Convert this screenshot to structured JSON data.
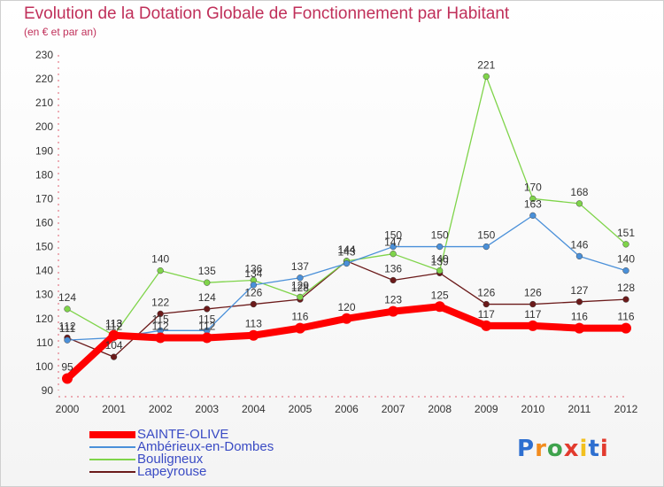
{
  "title": "Evolution de la Dotation Globale de Fonctionnement par Habitant",
  "subtitle": "(en € et par an)",
  "logo": {
    "letters": [
      "P",
      "r",
      "o",
      "x",
      "i",
      "t",
      "i"
    ],
    "colors": [
      "#2e6fd0",
      "#f28c1e",
      "#3fa34d",
      "#e23b2e",
      "#f2c01e",
      "#2e6fd0",
      "#e23b2e"
    ]
  },
  "chart_data": {
    "type": "line",
    "title": "Evolution de la Dotation Globale de Fonctionnement par Habitant",
    "ylabel": "",
    "x": [
      "2000",
      "2001",
      "2002",
      "2003",
      "2004",
      "2005",
      "2006",
      "2007",
      "2008",
      "2009",
      "2010",
      "2011",
      "2012"
    ],
    "ylim": [
      90,
      230
    ],
    "yticks": [
      "90",
      "100",
      "110",
      "120",
      "130",
      "140",
      "150",
      "160",
      "170",
      "180",
      "190",
      "200",
      "210",
      "220",
      "230"
    ],
    "grid": false,
    "legend_position": "bottom-left",
    "series": [
      {
        "name": "SAINTE-OLIVE",
        "color": "#ff0000",
        "values": [
          95,
          113,
          112,
          112,
          113,
          116,
          120,
          123,
          125,
          117,
          117,
          116,
          116
        ],
        "labels": [
          "95",
          "113",
          "112",
          "112",
          "113",
          "116",
          "120",
          "123",
          "125",
          "117",
          "117",
          "116",
          "116"
        ]
      },
      {
        "name": "Ambérieux-en-Dombes",
        "color": "#4a90d9",
        "values": [
          111,
          112,
          115,
          115,
          134,
          137,
          143,
          150,
          150,
          150,
          163,
          146,
          140
        ],
        "labels": [
          "111",
          "112",
          "115",
          "115",
          "134",
          "137",
          "143",
          "150",
          "150",
          "150",
          "163",
          "146",
          "140"
        ]
      },
      {
        "name": "Bouligneux",
        "color": "#7fd44a",
        "values": [
          124,
          113,
          140,
          135,
          136,
          129,
          144,
          147,
          140,
          221,
          170,
          168,
          151
        ],
        "labels": [
          "124",
          "113",
          "140",
          "135",
          "136",
          "129",
          "144",
          "147",
          "140",
          "221",
          "170",
          "168",
          "151"
        ]
      },
      {
        "name": "Lapeyrouse",
        "color": "#6b1a1a",
        "values": [
          112,
          104,
          122,
          124,
          126,
          128,
          144,
          136,
          139,
          126,
          126,
          127,
          128
        ],
        "labels": [
          "112",
          "104",
          "122",
          "124",
          "126",
          "128",
          "144",
          "136",
          "139",
          "126",
          "126",
          "127",
          "128"
        ]
      }
    ]
  }
}
